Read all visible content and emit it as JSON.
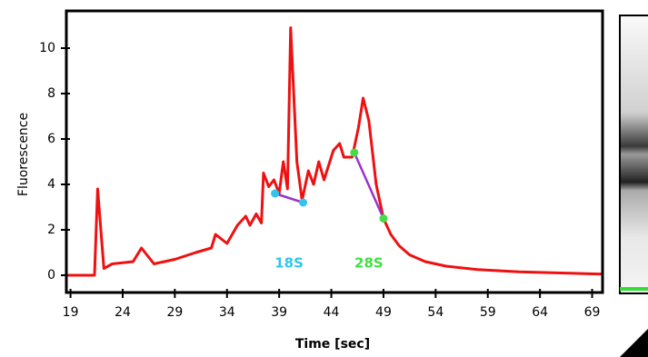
{
  "chart_data": {
    "type": "line",
    "xlabel": "Time [sec]",
    "ylabel": "Fluorescence",
    "xlim": [
      18.6,
      70
    ],
    "ylim": [
      -0.76,
      11.64
    ],
    "xticks": [
      19,
      24,
      29,
      34,
      39,
      44,
      49,
      54,
      59,
      64,
      69
    ],
    "yticks": [
      0,
      2,
      4,
      6,
      8,
      10
    ],
    "x": [
      18.6,
      21.3,
      21.6,
      22.2,
      23,
      25,
      25.8,
      27,
      29,
      31,
      32.5,
      32.9,
      34,
      35,
      35.8,
      36.2,
      36.8,
      37.3,
      37.5,
      38,
      38.5,
      39,
      39.4,
      39.8,
      40.1,
      40.7,
      41.2,
      41.8,
      42.3,
      42.8,
      43.3,
      44.2,
      44.8,
      45.2,
      46,
      46.6,
      47.05,
      47.6,
      48.3,
      49,
      49.7,
      50.5,
      51.5,
      53,
      55,
      58,
      62,
      66,
      70
    ],
    "series": [
      {
        "color": "#ee1111",
        "values": [
          0,
          0,
          3.8,
          0.3,
          0.5,
          0.6,
          1.2,
          0.5,
          0.7,
          1.0,
          1.2,
          1.8,
          1.4,
          2.2,
          2.6,
          2.2,
          2.7,
          2.3,
          4.5,
          3.9,
          4.2,
          3.6,
          5.0,
          3.8,
          10.9,
          5.0,
          3.3,
          4.6,
          4.0,
          5.0,
          4.2,
          5.5,
          5.8,
          5.2,
          5.2,
          6.5,
          7.8,
          6.8,
          4.0,
          2.5,
          1.8,
          1.3,
          0.9,
          0.6,
          0.4,
          0.25,
          0.15,
          0.1,
          0.05
        ]
      },
      {
        "name": "18S",
        "color": "#33c4ec",
        "line_color": "#9933cc",
        "x": [
          38.6,
          41.3
        ],
        "values": [
          3.6,
          3.2
        ]
      },
      {
        "name": "28S",
        "color": "#44dd44",
        "line_color": "#9933cc",
        "x": [
          46.2,
          49.0
        ],
        "values": [
          5.4,
          2.5
        ]
      }
    ]
  }
}
